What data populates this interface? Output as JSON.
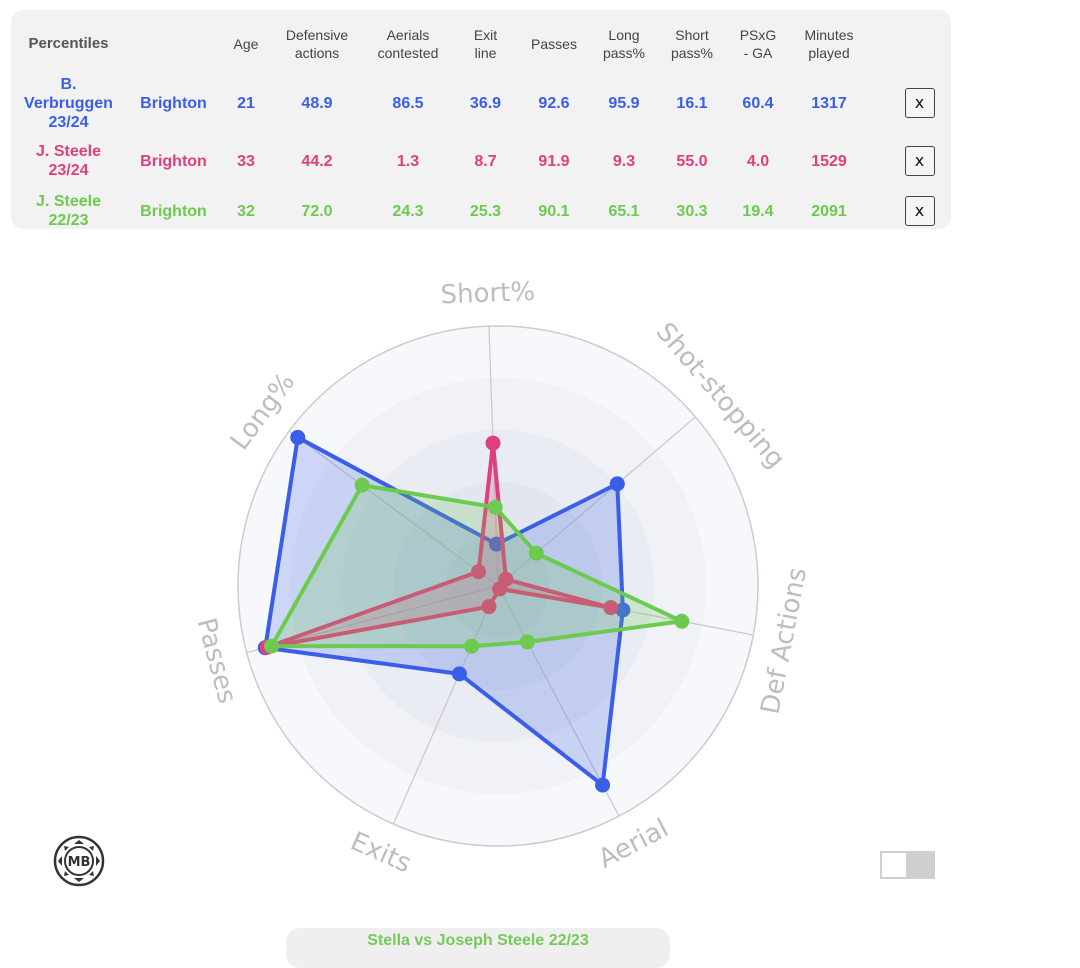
{
  "table": {
    "header": {
      "corner": "Percentiles",
      "columns": [
        "Age",
        "Defensive\nactions",
        "Aerials\ncontested",
        "Exit\nline",
        "Passes",
        "Long\npass%",
        "Short\npass%",
        "PSxG\n- GA",
        "Minutes\nplayed"
      ]
    },
    "rows": [
      {
        "player": "B.\nVerbruggen\n23/24",
        "team": "Brighton",
        "color": "#3a5ee8",
        "values": [
          "21",
          "48.9",
          "86.5",
          "36.9",
          "92.6",
          "95.9",
          "16.1",
          "60.4",
          "1317"
        ],
        "remove": "x"
      },
      {
        "player": "J. Steele\n23/24",
        "team": "Brighton",
        "color": "#e03f7d",
        "values": [
          "33",
          "44.2",
          "1.3",
          "8.7",
          "91.9",
          "9.3",
          "55.0",
          "4.0",
          "1529"
        ],
        "remove": "x"
      },
      {
        "player": "J. Steele\n22/23",
        "team": "Brighton",
        "color": "#6cca4f",
        "values": [
          "32",
          "72.0",
          "24.3",
          "25.3",
          "90.1",
          "65.1",
          "30.3",
          "19.4",
          "2091"
        ],
        "remove": "x"
      }
    ]
  },
  "radar": {
    "axes": [
      "Short%",
      "Shot-stopping",
      "Def Actions",
      "Aerial",
      "Exits",
      "Passes",
      "Long%"
    ],
    "series": [
      {
        "name": "B. Verbruggen 23/24",
        "color": "#3a5ee8",
        "values": [
          16.1,
          60.4,
          48.9,
          86.5,
          36.9,
          92.6,
          95.9
        ]
      },
      {
        "name": "J. Steele 23/24",
        "color": "#e03f7d",
        "values": [
          55.0,
          4.0,
          44.2,
          1.3,
          8.7,
          91.9,
          9.3
        ]
      },
      {
        "name": "J. Steele 22/23",
        "color": "#6cca4f",
        "values": [
          30.3,
          19.4,
          72.0,
          24.3,
          25.3,
          90.1,
          65.1
        ]
      }
    ],
    "max": 100
  },
  "logo": {
    "text": "MB"
  },
  "footer": {
    "text": "Stella vs Joseph Steele 22/23"
  }
}
